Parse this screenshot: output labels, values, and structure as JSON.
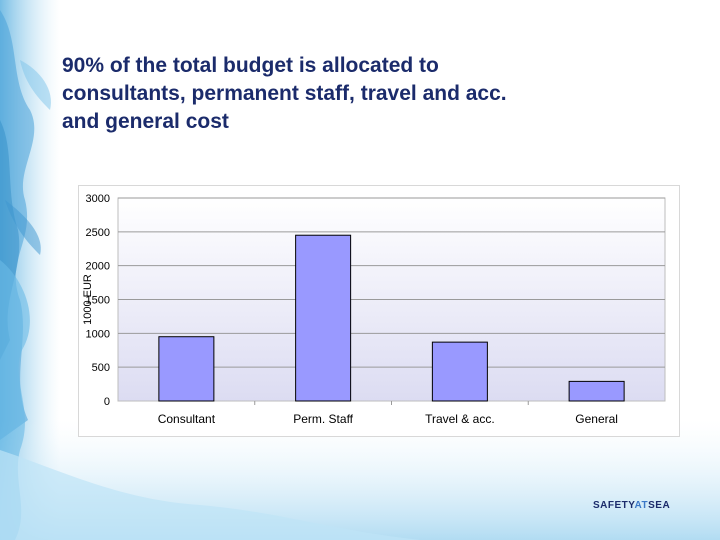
{
  "slide": {
    "title_lines": [
      "90% of the total budget is allocated to",
      "consultants, permanent staff, travel and acc.",
      "and general cost"
    ]
  },
  "logo": {
    "part1": "SAFETY",
    "part2": "AT",
    "part3": "SEA"
  },
  "colors": {
    "title": "#1b2b6b",
    "bar_fill": "#9999ff",
    "bar_stroke": "#000000",
    "plot_background_top": "#ffffff",
    "plot_background_bottom": "#dcdcf2",
    "background_art": "#8ec9ea"
  },
  "chart_data": {
    "type": "bar",
    "categories": [
      "Consultant",
      "Perm. Staff",
      "Travel & acc.",
      "General"
    ],
    "values": [
      950,
      2450,
      870,
      290
    ],
    "title": "",
    "xlabel": "",
    "ylabel": "1000 EUR",
    "ylim": [
      0,
      3000
    ],
    "yticks": [
      0,
      500,
      1000,
      1500,
      2000,
      2500,
      3000
    ],
    "grid": true,
    "legend": "none"
  }
}
